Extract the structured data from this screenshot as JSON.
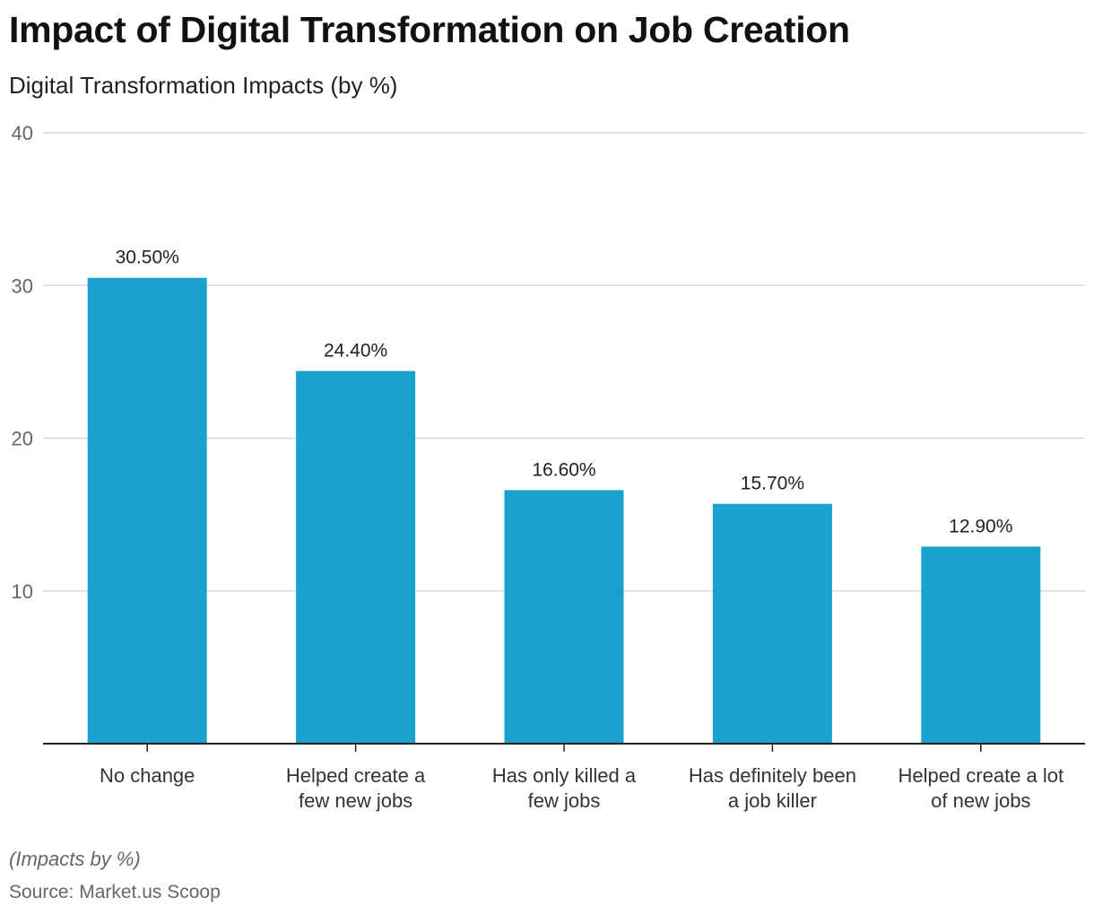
{
  "title": "Impact of Digital Transformation on Job Creation",
  "subtitle": "Digital Transformation Impacts (by %)",
  "note": "(Impacts by %)",
  "source": "Source: Market.us Scoop",
  "chart_data": {
    "type": "bar",
    "categories": [
      [
        "No change"
      ],
      [
        "Helped create a",
        "few new jobs"
      ],
      [
        "Has only killed a",
        "few jobs"
      ],
      [
        "Has definitely been",
        "a job killer"
      ],
      [
        "Helped create a lot",
        "of new jobs"
      ]
    ],
    "values": [
      30.5,
      24.4,
      16.6,
      15.7,
      12.9
    ],
    "data_labels": [
      "30.50%",
      "24.40%",
      "16.60%",
      "15.70%",
      "12.90%"
    ],
    "ylim": [
      0,
      40
    ],
    "yticks": [
      10,
      20,
      30,
      40
    ],
    "grid": true,
    "bar_color": "#1ba1cf",
    "xlabel": "",
    "ylabel": ""
  }
}
